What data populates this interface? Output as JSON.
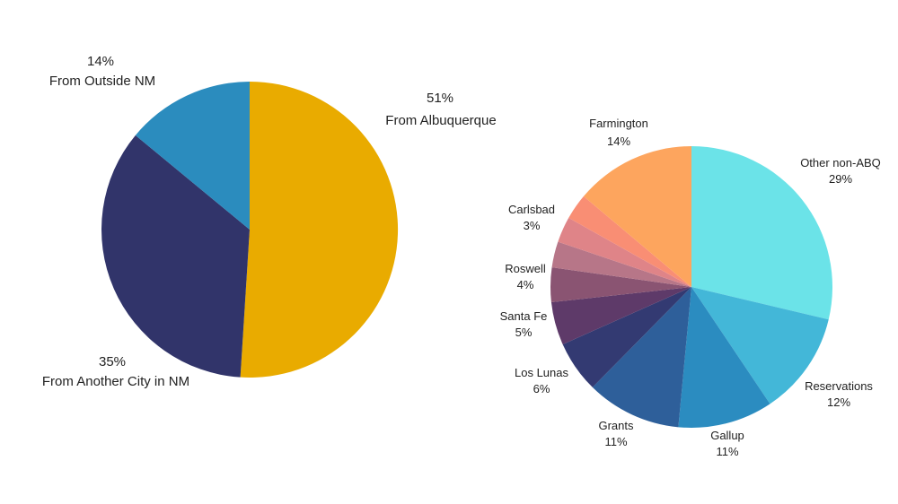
{
  "chart_data": [
    {
      "type": "pie",
      "title": "",
      "slices": [
        {
          "label": "From Albuquerque",
          "value": 51,
          "display": "51%",
          "color": "#E9AB00"
        },
        {
          "label": "From Another City in NM",
          "value": 35,
          "display": "35%",
          "color": "#31346A"
        },
        {
          "label": "From Outside NM",
          "value": 14,
          "display": "14%",
          "color": "#2B8CBE"
        }
      ]
    },
    {
      "type": "pie",
      "title": "",
      "slices": [
        {
          "label": "Other non-ABQ",
          "value": 29,
          "display": "29%",
          "color": "#6BE3E8"
        },
        {
          "label": "Reservations",
          "value": 12,
          "display": "12%",
          "color": "#43B7D8"
        },
        {
          "label": "Gallup",
          "value": 11,
          "display": "11%",
          "color": "#2B8CC0"
        },
        {
          "label": "Grants",
          "value": 11,
          "display": "11%",
          "color": "#2E5F9A"
        },
        {
          "label": "Los Lunas",
          "value": 6,
          "display": "6%",
          "color": "#333A72"
        },
        {
          "label": "Santa Fe",
          "value": 5,
          "display": "5%",
          "color": "#5E3A69"
        },
        {
          "label": "Roswell",
          "value": 4,
          "display": "4%",
          "color": "#8A5472"
        },
        {
          "label": "",
          "value": 3,
          "display": "",
          "color": "#B77688"
        },
        {
          "label": "",
          "value": 3,
          "display": "",
          "color": "#DF8488"
        },
        {
          "label": "Carlsbad",
          "value": 3,
          "display": "3%",
          "color": "#F98E74"
        },
        {
          "label": "Farmington",
          "value": 14,
          "display": "14%",
          "color": "#FDA55E"
        }
      ]
    }
  ]
}
